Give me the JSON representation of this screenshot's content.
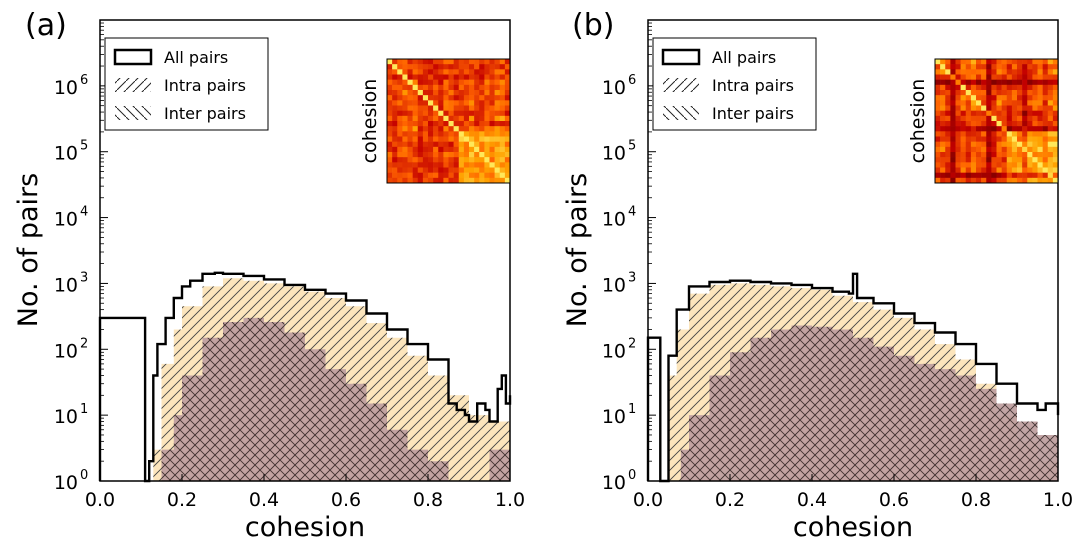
{
  "chart_data": [
    {
      "panel": "(a)",
      "type": "area",
      "xlabel": "cohesion",
      "ylabel": "No. of pairs",
      "xlim": [
        0.0,
        1.0
      ],
      "ylim": [
        1,
        10000000
      ],
      "yscale": "log",
      "xticks": [
        "0.0",
        "0.2",
        "0.4",
        "0.6",
        "0.8",
        "1.0"
      ],
      "yticks": [
        {
          "base": "10",
          "exp": "0"
        },
        {
          "base": "10",
          "exp": "1"
        },
        {
          "base": "10",
          "exp": "2"
        },
        {
          "base": "10",
          "exp": "3"
        },
        {
          "base": "10",
          "exp": "4"
        },
        {
          "base": "10",
          "exp": "5"
        },
        {
          "base": "10",
          "exp": "6"
        }
      ],
      "legend": {
        "placement": "top-left",
        "entries": [
          "All pairs",
          "Intra pairs",
          "Inter pairs"
        ]
      },
      "inset_label": "cohesion",
      "series": [
        {
          "name": "All pairs",
          "x": [
            0.0,
            0.005,
            0.11,
            0.12,
            0.13,
            0.14,
            0.16,
            0.18,
            0.2,
            0.22,
            0.25,
            0.28,
            0.3,
            0.35,
            0.4,
            0.45,
            0.5,
            0.55,
            0.6,
            0.65,
            0.7,
            0.75,
            0.8,
            0.85,
            0.87,
            0.89,
            0.9,
            0.92,
            0.94,
            0.95,
            0.97,
            0.98,
            0.99,
            1.0
          ],
          "values": [
            300,
            300,
            1,
            2,
            40,
            120,
            300,
            600,
            900,
            1100,
            1400,
            1450,
            1400,
            1300,
            1150,
            950,
            800,
            700,
            550,
            350,
            200,
            120,
            70,
            15,
            12,
            10,
            8,
            15,
            12,
            8,
            25,
            40,
            15,
            20
          ]
        },
        {
          "name": "Intra pairs",
          "x": [
            0.11,
            0.13,
            0.15,
            0.18,
            0.2,
            0.25,
            0.3,
            0.35,
            0.4,
            0.45,
            0.5,
            0.55,
            0.6,
            0.65,
            0.7,
            0.75,
            0.8,
            0.85,
            0.9,
            0.95,
            1.0
          ],
          "values": [
            1,
            3,
            60,
            200,
            450,
            900,
            1200,
            1100,
            1000,
            900,
            750,
            600,
            450,
            250,
            150,
            80,
            40,
            20,
            10,
            8,
            6
          ]
        },
        {
          "name": "Inter pairs",
          "x": [
            0.11,
            0.13,
            0.15,
            0.18,
            0.2,
            0.25,
            0.3,
            0.35,
            0.4,
            0.45,
            0.5,
            0.55,
            0.6,
            0.65,
            0.7,
            0.75,
            0.8,
            0.85,
            0.9,
            0.95,
            1.0
          ],
          "values": [
            1,
            1,
            3,
            10,
            40,
            150,
            260,
            300,
            260,
            180,
            100,
            50,
            30,
            15,
            6,
            3,
            2,
            1,
            1,
            3,
            2
          ]
        }
      ]
    },
    {
      "panel": "(b)",
      "type": "area",
      "xlabel": "cohesion",
      "ylabel": "No. of pairs",
      "xlim": [
        0.0,
        1.0
      ],
      "ylim": [
        1,
        10000000
      ],
      "yscale": "log",
      "xticks": [
        "0.0",
        "0.2",
        "0.4",
        "0.6",
        "0.8",
        "1.0"
      ],
      "yticks": [
        {
          "base": "10",
          "exp": "0"
        },
        {
          "base": "10",
          "exp": "1"
        },
        {
          "base": "10",
          "exp": "2"
        },
        {
          "base": "10",
          "exp": "3"
        },
        {
          "base": "10",
          "exp": "4"
        },
        {
          "base": "10",
          "exp": "5"
        },
        {
          "base": "10",
          "exp": "6"
        }
      ],
      "legend": {
        "placement": "top-left",
        "entries": [
          "All pairs",
          "Intra pairs",
          "Inter pairs"
        ]
      },
      "inset_label": "cohesion",
      "series": [
        {
          "name": "All pairs",
          "x": [
            0.0,
            0.005,
            0.03,
            0.05,
            0.07,
            0.1,
            0.15,
            0.2,
            0.25,
            0.3,
            0.35,
            0.4,
            0.45,
            0.49,
            0.5,
            0.51,
            0.55,
            0.6,
            0.65,
            0.7,
            0.75,
            0.8,
            0.85,
            0.9,
            0.95,
            0.97,
            1.0
          ],
          "values": [
            150,
            150,
            1,
            80,
            400,
            900,
            1050,
            1100,
            1050,
            1000,
            950,
            850,
            750,
            700,
            1400,
            600,
            500,
            350,
            250,
            180,
            120,
            60,
            30,
            15,
            12,
            15,
            10
          ]
        },
        {
          "name": "Intra pairs",
          "x": [
            0.04,
            0.05,
            0.07,
            0.1,
            0.15,
            0.2,
            0.25,
            0.3,
            0.35,
            0.4,
            0.45,
            0.5,
            0.55,
            0.6,
            0.65,
            0.7,
            0.75,
            0.8,
            0.85,
            0.9,
            0.95,
            1.0
          ],
          "values": [
            1,
            40,
            200,
            700,
            950,
            1000,
            950,
            900,
            850,
            800,
            650,
            520,
            400,
            300,
            200,
            120,
            70,
            30,
            10,
            4,
            2,
            1
          ]
        },
        {
          "name": "Inter pairs",
          "x": [
            0.06,
            0.08,
            0.1,
            0.15,
            0.2,
            0.25,
            0.3,
            0.35,
            0.4,
            0.45,
            0.5,
            0.55,
            0.6,
            0.65,
            0.7,
            0.75,
            0.8,
            0.85,
            0.9,
            0.95,
            1.0
          ],
          "values": [
            1,
            3,
            10,
            40,
            90,
            150,
            200,
            230,
            220,
            200,
            150,
            110,
            80,
            60,
            50,
            40,
            25,
            15,
            8,
            5,
            3
          ]
        }
      ]
    }
  ]
}
